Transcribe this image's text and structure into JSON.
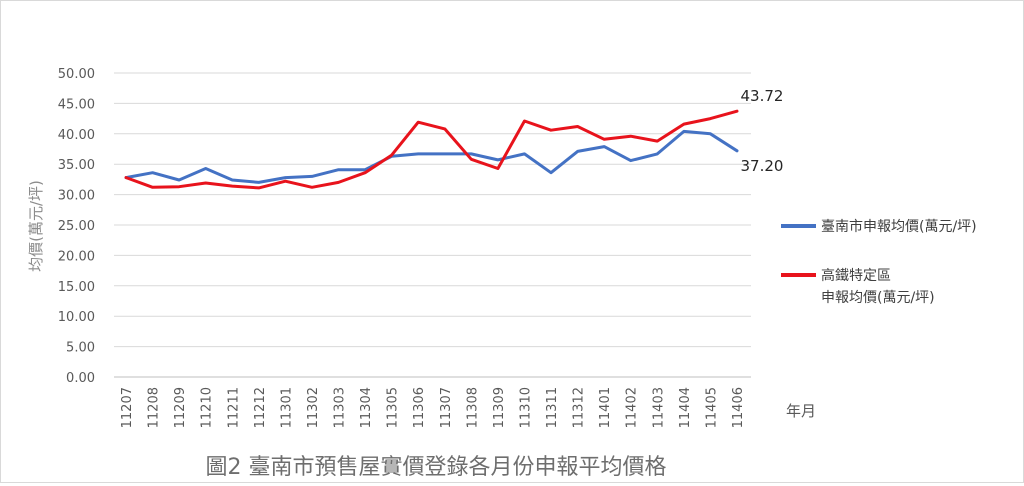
{
  "chart_data": {
    "type": "line",
    "title": "圖2  臺南市預售屋實價登錄各月份申報平均價格",
    "ylabel": "均價(萬元/坪)",
    "xlabel": "年月",
    "ylim": [
      0,
      50
    ],
    "yticks": [
      "0.00",
      "5.00",
      "10.00",
      "15.00",
      "20.00",
      "25.00",
      "30.00",
      "35.00",
      "40.00",
      "45.00",
      "50.00"
    ],
    "categories": [
      "11207",
      "11208",
      "11209",
      "11210",
      "11211",
      "11212",
      "11301",
      "11302",
      "11303",
      "11304",
      "11305",
      "11306",
      "11307",
      "11308",
      "11309",
      "11310",
      "11311",
      "11312",
      "11401",
      "11402",
      "11403",
      "11404",
      "11405",
      "11406"
    ],
    "series": [
      {
        "name": "臺南市申報均價(萬元/坪)",
        "color": "#4472c4",
        "values": [
          32.8,
          33.6,
          32.4,
          34.3,
          32.4,
          32.0,
          32.8,
          33.0,
          34.1,
          34.1,
          36.3,
          36.7,
          36.7,
          36.7,
          35.7,
          36.7,
          33.6,
          37.1,
          37.9,
          35.6,
          36.7,
          40.4,
          40.0,
          37.2
        ]
      },
      {
        "name_lines": [
          "高鐵特定區",
          "申報均價(萬元/坪)"
        ],
        "color": "#e8131c",
        "values": [
          32.8,
          31.2,
          31.3,
          31.9,
          31.4,
          31.1,
          32.2,
          31.2,
          32.0,
          33.6,
          36.5,
          41.9,
          40.8,
          35.8,
          34.3,
          42.1,
          40.6,
          41.2,
          39.1,
          39.6,
          38.8,
          41.6,
          42.5,
          43.72
        ]
      }
    ],
    "annotations": [
      {
        "text": "43.72",
        "series": 1,
        "index": 23
      },
      {
        "text": "37.20",
        "series": 0,
        "index": 23
      }
    ],
    "grid": true,
    "legend_position": "right"
  }
}
